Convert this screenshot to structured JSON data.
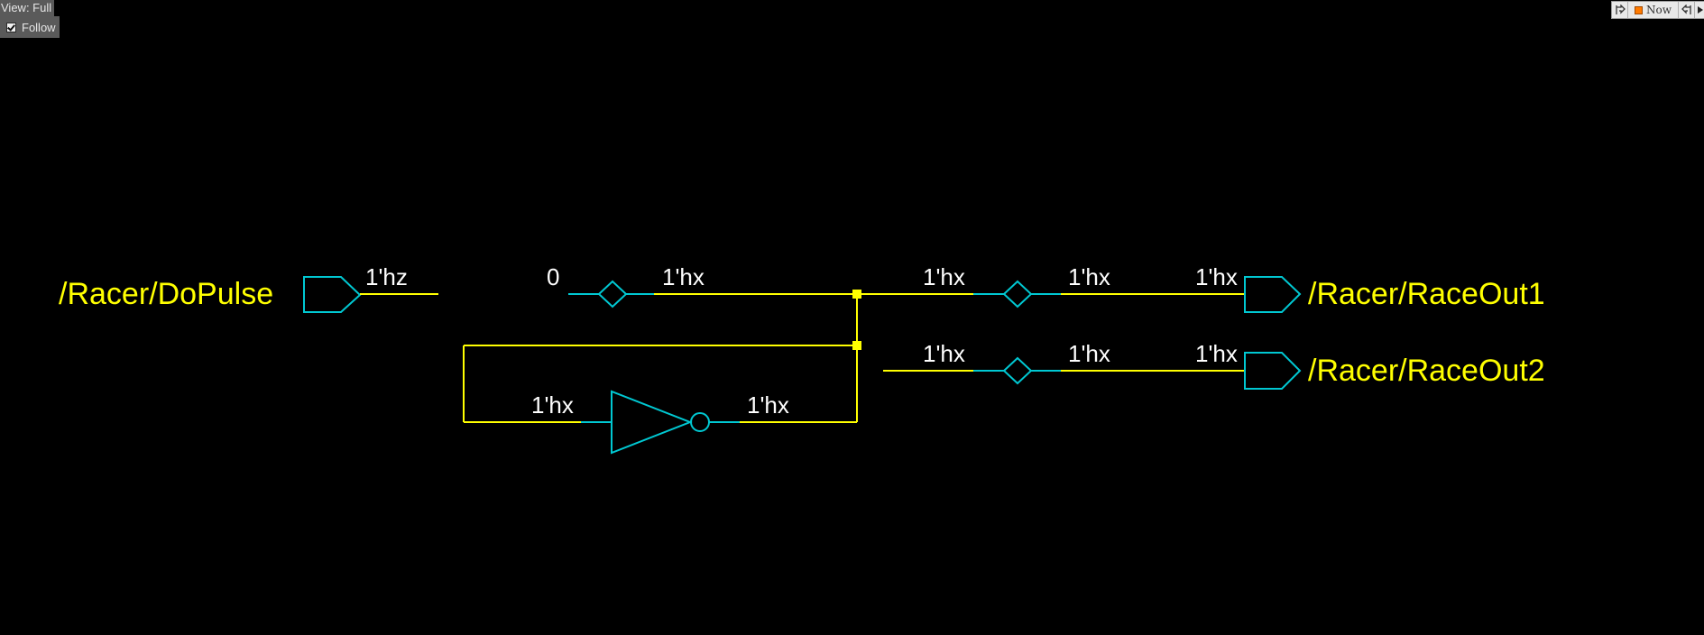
{
  "view": {
    "label": "View: Full"
  },
  "follow": {
    "label": "Follow",
    "checked": true
  },
  "toolbar": {
    "now_label": "Now",
    "step_back_icon": "step-back-icon",
    "step_forward_icon": "step-forward-icon",
    "more_icon": "arrow-right-icon",
    "now_color": "#ff7a00"
  },
  "colors": {
    "background": "#000000",
    "wire": "#ffff00",
    "component": "#00c8d2",
    "value_text": "#ffffff",
    "signal_name": "#ffff00"
  },
  "schematic": {
    "ports": {
      "do_pulse": "/Racer/DoPulse",
      "race_out1": "/Racer/RaceOut1",
      "race_out2": "/Racer/RaceOut2"
    },
    "values": {
      "do_pulse_net": "1'hz",
      "const_zero": "0",
      "top_net_left": "1'hx",
      "top_net_mid": "1'hx",
      "top_net_right": "1'hx",
      "top_net_port": "1'hx",
      "bottom_net_mid": "1'hx",
      "bottom_net_right": "1'hx",
      "bottom_net_port": "1'hx",
      "inverter_in": "1'hx",
      "inverter_out": "1'hx"
    }
  }
}
